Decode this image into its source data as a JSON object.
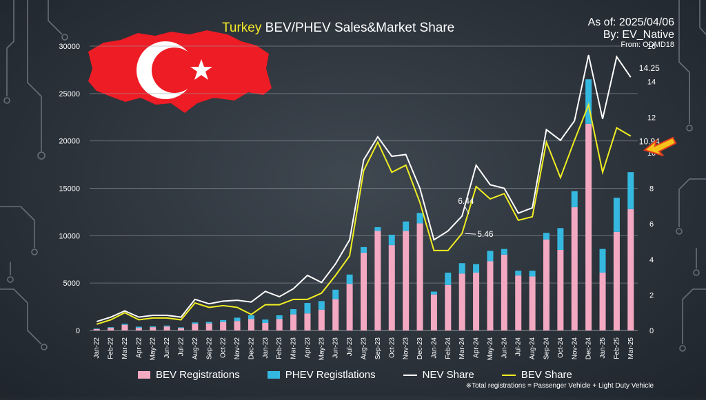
{
  "header": {
    "title_highlight": "Turkey",
    "title_rest": " BEV/PHEV Sales&Market Share",
    "asof_line1": "As of: 2025/04/06",
    "asof_line2": "By: EV_Native",
    "asof_line3": "From: ODMD18"
  },
  "footnote": "※Total registrations = Passenger Vehicle + Light Duty Vehicle",
  "colors": {
    "bev_bar": "#f4a9c2",
    "phev_bar": "#35b8e0",
    "nev_line": "#ffffff",
    "bev_line": "#f1ee22",
    "grid": "#9aa1a8",
    "arrow": "#f7c21a"
  },
  "chart_data": {
    "type": "bar",
    "title": "Turkey BEV/PHEV Sales&Market Share",
    "categories": [
      "Jan-22",
      "Feb-22",
      "Mar-22",
      "Apr-22",
      "May-22",
      "Jun-22",
      "Jul-22",
      "Aug-22",
      "Sep-22",
      "Oct-22",
      "Nov-22",
      "Dec-22",
      "Jan-23",
      "Feb-23",
      "Mar-23",
      "Apr-23",
      "May-23",
      "Jun-23",
      "Jul-23",
      "Aug-23",
      "Sep-23",
      "Oct-23",
      "Nov-23",
      "Dec-23",
      "Jan-24",
      "Feb-24",
      "Mar-24",
      "Apr-24",
      "May-24",
      "Jun-24",
      "Jul-24",
      "Aug-24",
      "Sep-24",
      "Oct-24",
      "Nov-24",
      "Dec-24",
      "Jan-25",
      "Feb-25",
      "Mar-25"
    ],
    "y_left": {
      "min": 0,
      "max": 30000,
      "ticks": [
        0,
        5000,
        10000,
        15000,
        20000,
        25000,
        30000
      ]
    },
    "y_right": {
      "min": 0,
      "max": 16,
      "ticks": [
        0,
        2,
        4,
        6,
        8,
        10,
        12,
        14,
        16
      ]
    },
    "grid": true,
    "legend_position": "bottom",
    "series": [
      {
        "name": "BEV Registrations",
        "kind": "bar-stacked",
        "axis": "left",
        "values": [
          150,
          280,
          600,
          280,
          350,
          420,
          250,
          700,
          750,
          900,
          1000,
          1200,
          800,
          1200,
          1700,
          1800,
          2200,
          3300,
          4900,
          8200,
          10500,
          9000,
          10500,
          11300,
          3800,
          4800,
          6000,
          6100,
          7300,
          8000,
          5800,
          5700,
          9600,
          8500,
          13000,
          21800,
          6100,
          10400,
          12800
        ]
      },
      {
        "name": "PHEV Registlations",
        "kind": "bar-stacked",
        "axis": "left",
        "values": [
          50,
          70,
          100,
          120,
          80,
          100,
          80,
          150,
          150,
          200,
          350,
          400,
          350,
          400,
          550,
          1100,
          900,
          1000,
          1000,
          600,
          400,
          1100,
          1000,
          1100,
          300,
          1300,
          1100,
          900,
          1100,
          600,
          500,
          600,
          700,
          2300,
          1700,
          4700,
          2500,
          3600,
          3900
        ]
      },
      {
        "name": "NEV Share",
        "kind": "line",
        "axis": "right",
        "values": [
          0.5,
          0.75,
          1.1,
          0.75,
          0.85,
          0.85,
          0.75,
          1.75,
          1.5,
          1.65,
          1.7,
          1.6,
          2.2,
          1.9,
          2.35,
          3.1,
          2.7,
          3.75,
          5.1,
          9.6,
          10.9,
          9.8,
          9.9,
          8.0,
          5.1,
          5.6,
          6.44,
          9.3,
          8.2,
          8.0,
          6.6,
          6.9,
          11.3,
          10.7,
          11.8,
          15.5,
          11.9,
          15.4,
          14.25
        ]
      },
      {
        "name": "BEV Share",
        "kind": "line",
        "axis": "right",
        "values": [
          0.35,
          0.6,
          1.0,
          0.6,
          0.7,
          0.7,
          0.6,
          1.55,
          1.3,
          1.4,
          1.3,
          0.9,
          1.45,
          1.45,
          1.75,
          1.75,
          2.1,
          3.1,
          4.2,
          9.0,
          10.6,
          8.9,
          9.3,
          7.2,
          4.5,
          4.5,
          5.46,
          8.1,
          7.4,
          7.7,
          6.2,
          6.4,
          10.6,
          8.6,
          10.7,
          12.7,
          8.9,
          11.4,
          10.94
        ]
      }
    ],
    "annotations": [
      {
        "series": "NEV Share",
        "category": "Mar-24",
        "label": "6.44"
      },
      {
        "series": "BEV Share",
        "category": "Mar-24",
        "label": "5.46"
      },
      {
        "series": "NEV Share",
        "category": "Mar-25",
        "label": "14.25"
      },
      {
        "series": "BEV Share",
        "category": "Mar-25",
        "label": "10.94"
      }
    ]
  }
}
